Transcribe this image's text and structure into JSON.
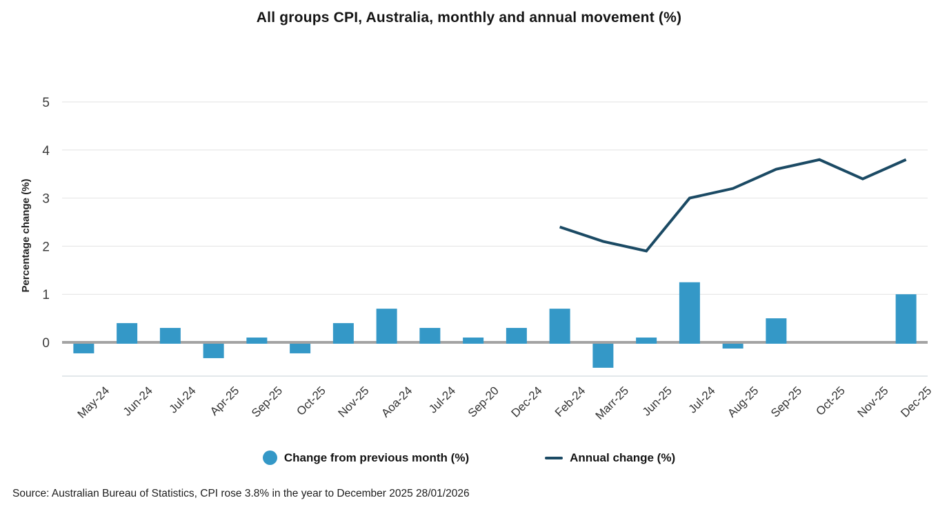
{
  "title": "All groups CPI, Australia, monthly and annual movement (%)",
  "source_note": "Source: Australian Bureau of Statistics, CPI rose 3.8% in the year to December 2025 28/01/2026",
  "legend": {
    "items": [
      {
        "label": "Change from previous month (%)",
        "marker": "circle-icon",
        "color": "#3498c7"
      },
      {
        "label": "Annual change (%)",
        "marker": "line-icon",
        "color": "#1b4a64"
      }
    ]
  },
  "chart_data": {
    "type": "combo",
    "title": "All groups CPI, Australia, monthly and annual movement (%)",
    "xlabel": "",
    "ylabel": "Percentage change (%)",
    "ylim": [
      -0.7,
      5
    ],
    "yticks": [
      0,
      1,
      2,
      3,
      4,
      5
    ],
    "grid": "horizontal",
    "legend_position": "bottom",
    "categories": [
      "May-24",
      "Jun-24",
      "Jul-24",
      "Apr-25",
      "Sep-25",
      "Oct-25",
      "Nov-25",
      "Aoa-24",
      "Jul-24",
      "Sep-20",
      "Dec-24",
      "Feb-24",
      "Marr-25",
      "Jun-25",
      "Jul-24",
      "Aug-25",
      "Sep-25",
      "Oct-25",
      "Nov-25",
      "Dec-25"
    ],
    "series": [
      {
        "name": "Change from previous month (%)",
        "type": "bar",
        "color": "#3498c7",
        "values": [
          -0.2,
          0.4,
          0.3,
          -0.3,
          0.1,
          -0.2,
          0.4,
          0.7,
          0.3,
          0.1,
          0.3,
          0.7,
          -0.5,
          0.1,
          1.25,
          -0.1,
          0.5,
          0,
          0,
          1.0
        ]
      },
      {
        "name": "Annual change (%)",
        "type": "line",
        "color": "#1b4a64",
        "values": [
          null,
          null,
          null,
          null,
          null,
          null,
          null,
          null,
          null,
          null,
          null,
          2.4,
          2.1,
          1.9,
          3.0,
          3.2,
          3.6,
          3.8,
          3.4,
          3.8
        ]
      }
    ]
  }
}
